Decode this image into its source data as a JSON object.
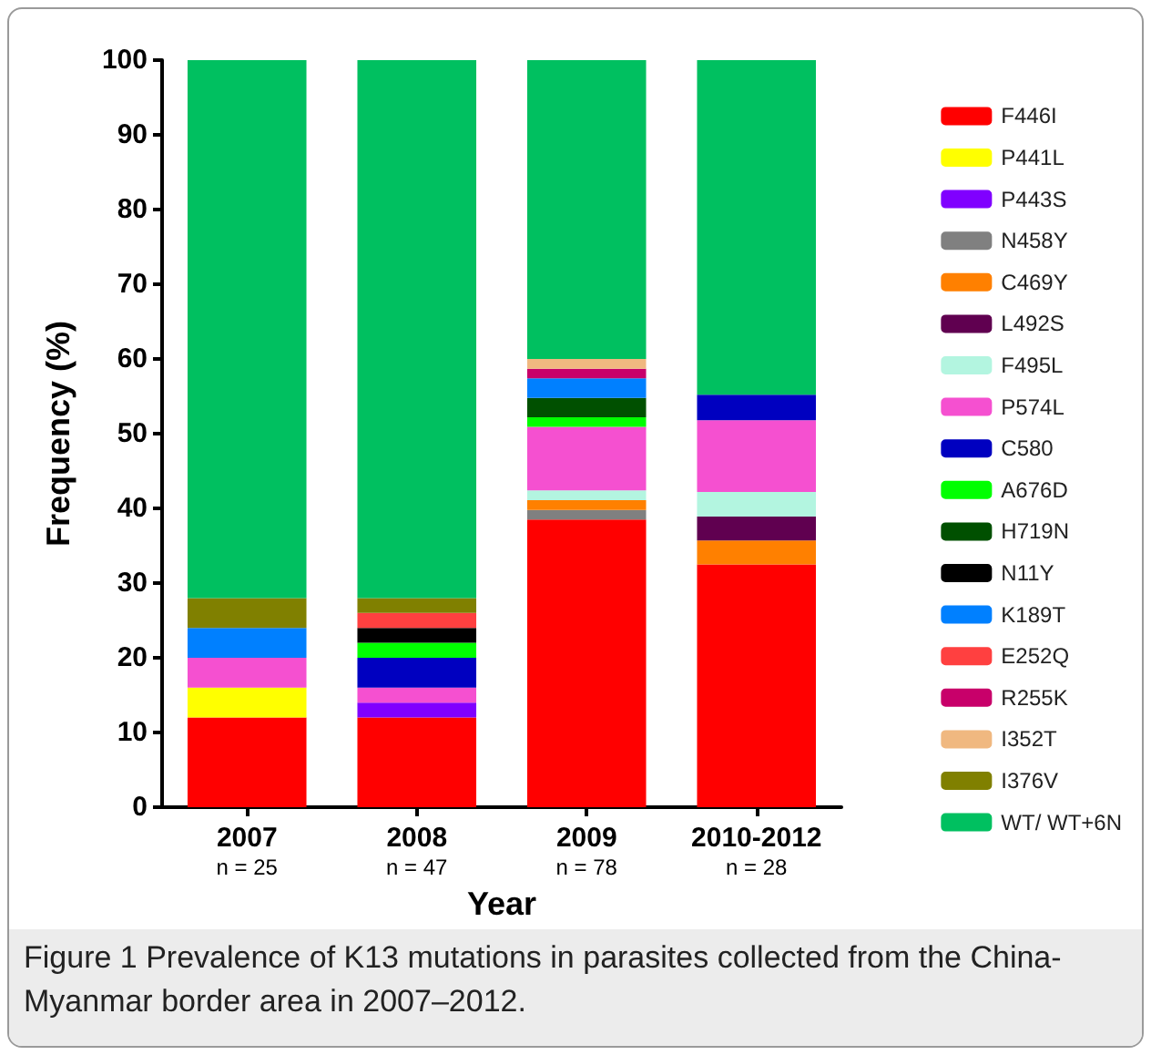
{
  "chart_data": {
    "type": "bar",
    "stacked": true,
    "xlabel": "Year",
    "ylabel": "Frequency (%)",
    "categories": [
      "2007\nn = 25",
      "2008\nn = 47",
      "2009\nn = 78",
      "2010-2012\nn = 28"
    ],
    "ylim": [
      0,
      100
    ],
    "yticks": [
      0,
      10,
      20,
      30,
      40,
      50,
      60,
      70,
      80,
      90,
      100
    ],
    "grid": false,
    "legend": "right",
    "annotations": [
      "Figure 1 Prevalence of K13 mutations in parasites collected from the China-Myanmar border area in 2007–2012."
    ],
    "series": [
      {
        "name": "F446I",
        "color": "#ff0000",
        "values": [
          12,
          12,
          38.5,
          32.5
        ]
      },
      {
        "name": "P441L",
        "color": "#ffff00",
        "values": [
          4,
          0,
          0,
          0
        ]
      },
      {
        "name": "P443S",
        "color": "#8000ff",
        "values": [
          0,
          2,
          0,
          0
        ]
      },
      {
        "name": "N458Y",
        "color": "#808080",
        "values": [
          0,
          0,
          1.3,
          0
        ]
      },
      {
        "name": "C469Y",
        "color": "#ff8000",
        "values": [
          0,
          0,
          1.3,
          3.2
        ]
      },
      {
        "name": "L492S",
        "color": "#600050",
        "values": [
          0,
          0,
          0,
          3.2
        ]
      },
      {
        "name": "F495L",
        "color": "#b3f5e0",
        "values": [
          0,
          0,
          1.3,
          3.3
        ]
      },
      {
        "name": "P574L",
        "color": "#f550d0",
        "values": [
          4,
          2,
          8.5,
          9.6
        ]
      },
      {
        "name": "C580",
        "color": "#0000c0",
        "values": [
          0,
          4,
          0,
          3.4
        ]
      },
      {
        "name": "A676D",
        "color": "#00ff00",
        "values": [
          0,
          2,
          1.3,
          0
        ]
      },
      {
        "name": "H719N",
        "color": "#005000",
        "values": [
          0,
          0,
          2.6,
          0
        ]
      },
      {
        "name": "N11Y",
        "color": "#000000",
        "values": [
          0,
          2,
          0,
          0
        ]
      },
      {
        "name": "K189T",
        "color": "#0080ff",
        "values": [
          4,
          0,
          2.6,
          0
        ]
      },
      {
        "name": "E252Q",
        "color": "#ff4040",
        "values": [
          0,
          2,
          0,
          0
        ]
      },
      {
        "name": "R255K",
        "color": "#c8006a",
        "values": [
          0,
          0,
          1.3,
          0
        ]
      },
      {
        "name": "I352T",
        "color": "#f0b880",
        "values": [
          0,
          0,
          1.3,
          0
        ]
      },
      {
        "name": "I376V",
        "color": "#808000",
        "values": [
          4,
          2,
          0,
          0
        ]
      },
      {
        "name": "WT/ WT+6N",
        "color": "#00c060",
        "values": [
          72,
          72,
          40,
          44.8
        ]
      }
    ]
  }
}
